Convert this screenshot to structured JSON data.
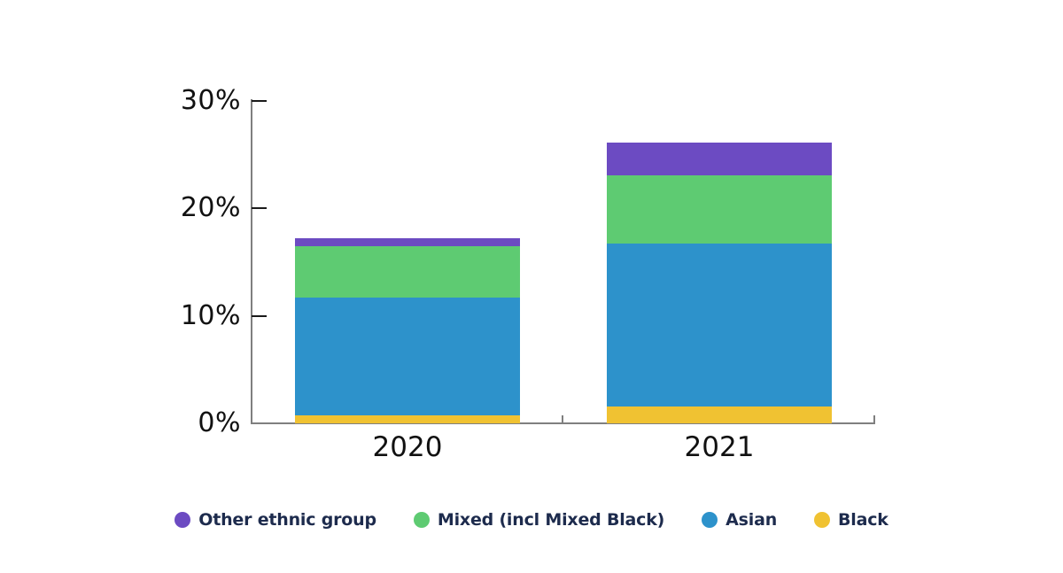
{
  "chart_data": {
    "type": "bar",
    "stacked": true,
    "title": "",
    "categories": [
      "2020",
      "2021"
    ],
    "series": [
      {
        "name": "Black",
        "color": "#f0c232",
        "values": [
          0.7,
          1.6
        ]
      },
      {
        "name": "Asian",
        "color": "#2d92cb",
        "values": [
          11.0,
          15.1
        ]
      },
      {
        "name": "Mixed (incl Mixed Black)",
        "color": "#5ecb72",
        "values": [
          4.8,
          6.4
        ]
      },
      {
        "name": "Other ethnic group",
        "color": "#6c4bc2",
        "values": [
          0.7,
          3.0
        ]
      }
    ],
    "stack_order_bottom_to_top": [
      "Black",
      "Asian",
      "Mixed (incl Mixed Black)",
      "Other ethnic group"
    ],
    "legend_labels": [
      "Other ethnic group",
      "Mixed (incl Mixed Black)",
      "Asian",
      "Black"
    ],
    "legend_position": "bottom",
    "xlabel": "",
    "ylabel": "",
    "ylim": [
      0,
      30
    ],
    "yticks": [
      0,
      10,
      20,
      30
    ],
    "ytick_labels": [
      "0%",
      "10%",
      "20%",
      "30%"
    ],
    "grid": false
  },
  "colors": {
    "background": "#ffffff",
    "axis_line": "#7f7f7f",
    "tick_mark": "#1a1a1a",
    "axis_label_text": "#111111",
    "legend_text": "#1d2b4d"
  }
}
